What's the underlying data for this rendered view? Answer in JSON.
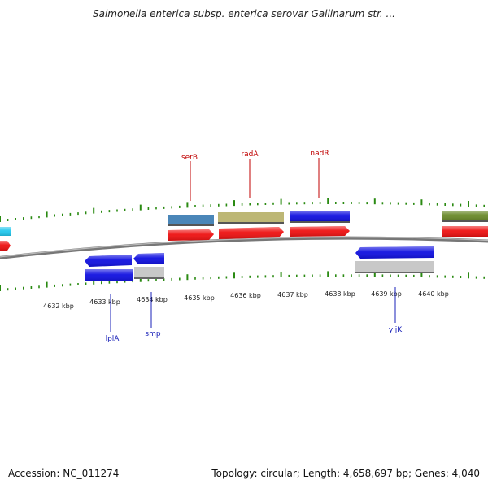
{
  "title": "Salmonella enterica subsp. enterica serovar Gallinarum str. ...",
  "footer": {
    "accession": "Accession: NC_011274",
    "summary": "Topology: circular; Length: 4,658,697 bp; Genes: 4,040"
  },
  "colors": {
    "backbone": "#888888",
    "tick": "#2a8a12",
    "red_gene": "#ee1111",
    "blue_gene": "#1010e0",
    "gray_gene": "#c8c8c8",
    "steel_gene": "#4a86b8",
    "khaki_gene": "#bdb775",
    "olive_gene": "#6a8a2a",
    "cyan_gene": "#22c8ee",
    "label_top": "#c00000",
    "label_bottom": "#1a22b8"
  },
  "scale": {
    "labels": [
      "4632 kbp",
      "4633 kbp",
      "4634 kbp",
      "4635 kbp",
      "4636 kbp",
      "4637 kbp",
      "4638 kbp",
      "4639 kbp",
      "4640 kbp"
    ]
  },
  "gene_labels_top": [
    {
      "name": "serB"
    },
    {
      "name": "radA"
    },
    {
      "name": "nadR"
    }
  ],
  "gene_labels_bottom": [
    {
      "name": "lplA"
    },
    {
      "name": "smp"
    },
    {
      "name": "yjjK"
    }
  ]
}
